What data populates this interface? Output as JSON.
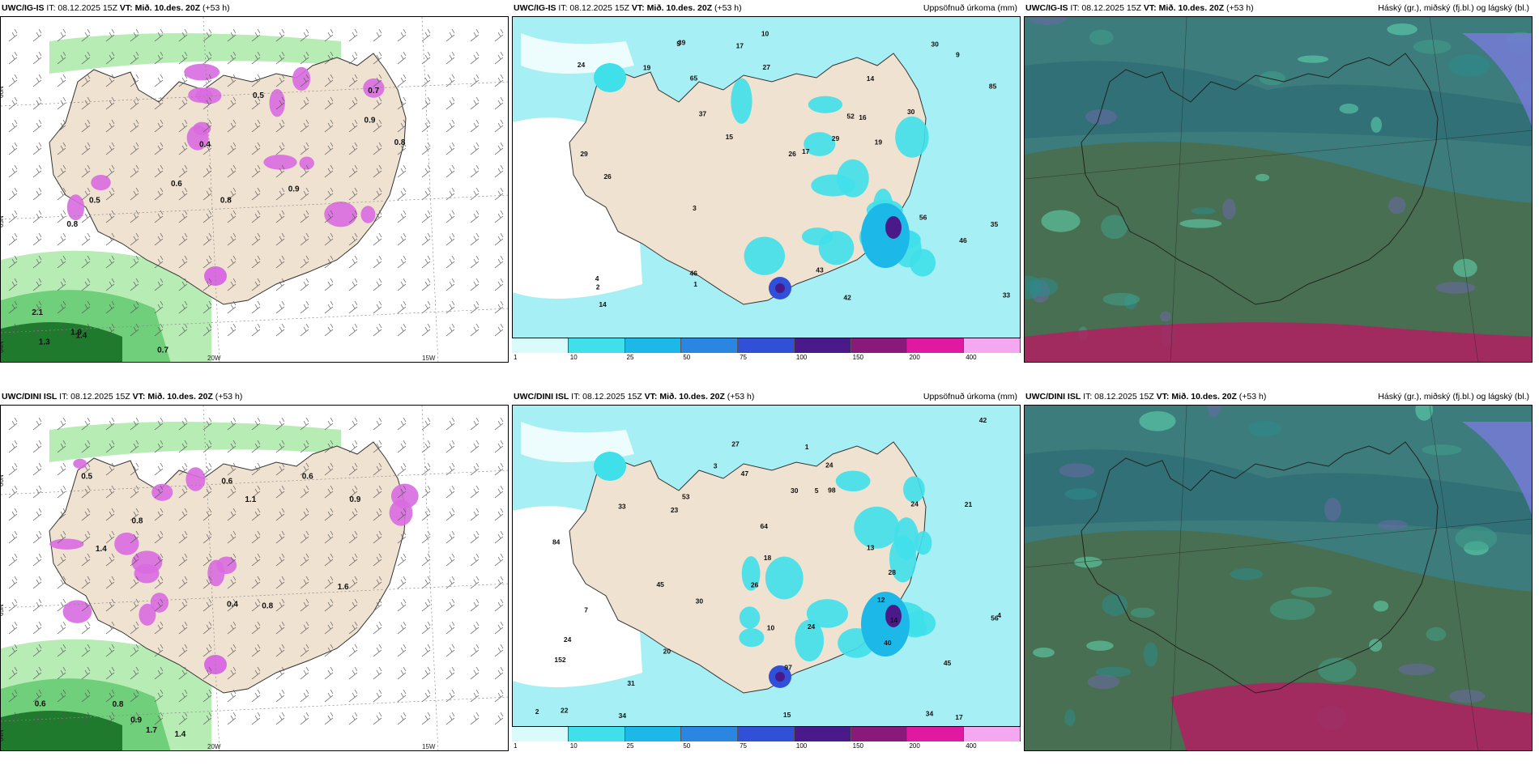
{
  "colors": {
    "land": "#efe2d1",
    "sea_precip": "#a6f0f5",
    "green_light": "#b7ecb5",
    "green_mid": "#6fcf7a",
    "green_dark": "#1f7a2e",
    "magenta": "#d86ce0",
    "cloud_dark": "#2e6e6a",
    "cloud_teal": "#2a8c8a",
    "cloud_red": "#c0306a"
  },
  "rows": [
    {
      "model": "UWC/IG-IS",
      "it_label": "IT: 08.12.2025 15Z",
      "vt_label": "VT: Mið. 10.des. 20Z",
      "lead": "(+53 h)",
      "precip_title": "Uppsöfnuð úrkoma (mm)",
      "cloud_title": "Háský (gr.), miðský (fj.bl.) og lágský (bl.)",
      "wind_lat_labels": [
        "66N",
        "65N",
        "64N"
      ],
      "wind_lon_labels": [
        "20W",
        "15W"
      ],
      "snow_labels": [
        "0.8",
        "0.5",
        "0.8",
        "0.9",
        "0.6",
        "0.9",
        "0.7",
        "0.4",
        "0.5",
        "0.8",
        "1.3",
        "1.4",
        "1.9",
        "0.7",
        "2.1"
      ],
      "precip_labels": [
        "19",
        "52",
        "17",
        "14",
        "17",
        "35",
        "30",
        "16",
        "27",
        "39",
        "37",
        "46",
        "43",
        "46",
        "30",
        "33",
        "42",
        "65",
        "56",
        "85",
        "26",
        "15",
        "14",
        "29",
        "29",
        "26",
        "24",
        "19",
        "10",
        "9",
        "4",
        "5",
        "3",
        "2",
        "1"
      ]
    },
    {
      "model": "UWC/DINI ISL",
      "it_label": "IT: 08.12.2025 15Z",
      "vt_label": "VT: Mið. 10.des. 20Z",
      "lead": "(+53 h)",
      "precip_title": "Uppsöfnuð úrkoma (mm)",
      "cloud_title": "Háský (gr.), miðský (fj.bl.) og lágský (bl.)",
      "wind_lat_labels": [
        "66N",
        "65N",
        "64N"
      ],
      "wind_lon_labels": [
        "20W",
        "15W"
      ],
      "snow_labels": [
        "1.1",
        "1.6",
        "0.5",
        "0.9",
        "0.4",
        "0.6",
        "0.8",
        "0.6",
        "0.8",
        "1.4",
        "1.7",
        "0.8",
        "0.9",
        "0.6",
        "1.4"
      ],
      "precip_labels": [
        "64",
        "17",
        "14",
        "15",
        "28",
        "26",
        "30",
        "18",
        "34",
        "45",
        "47",
        "33",
        "24",
        "42",
        "45",
        "40",
        "53",
        "31",
        "56",
        "21",
        "97",
        "98",
        "84",
        "34",
        "152",
        "22",
        "10",
        "24",
        "23",
        "24",
        "30",
        "24",
        "27",
        "20",
        "12",
        "13",
        "7",
        "5",
        "4",
        "3",
        "2",
        "1"
      ]
    }
  ],
  "colorbar": {
    "ticks": [
      "1",
      "10",
      "25",
      "50",
      "75",
      "100",
      "150",
      "200",
      "400"
    ],
    "colors": [
      "#d9fbfc",
      "#3fe0ea",
      "#1cb8e8",
      "#2a86e0",
      "#3050d8",
      "#4a1a8a",
      "#8a1a7a",
      "#e01aa0",
      "#f5a8f0"
    ]
  }
}
